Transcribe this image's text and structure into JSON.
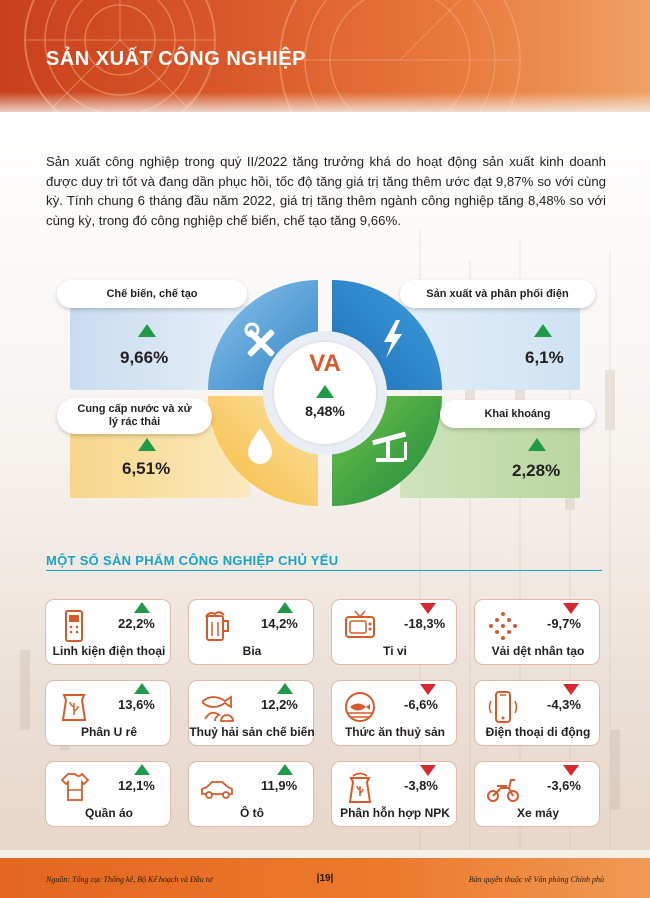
{
  "header": {
    "title": "SẢN XUẤT CÔNG NGHIỆP"
  },
  "intro": "Sản xuất công nghiệp trong quý II/2022 tăng trưởng khá do hoạt động sản xuất kinh doanh được duy trì tốt và đang dần phục hồi, tốc độ tăng giá trị tăng thêm ước đạt 9,87% so với cùng kỳ. Tính chung 6 tháng đầu năm 2022, giá trị tăng thêm ngành công nghiệp tăng 8,48% so với cùng kỳ, trong đó công nghiệp chế biến, chế tạo tăng 9,66%.",
  "va": {
    "center_label": "VA",
    "center_value": "8,48%",
    "sectors": [
      {
        "name": "Chế biến, chế tạo",
        "value": "9,66%",
        "trend": "up",
        "icon": "tools-icon"
      },
      {
        "name": "Sản xuất và phân phối điện",
        "value": "6,1%",
        "trend": "up",
        "icon": "lightning-icon"
      },
      {
        "name": "Cung cấp nước và xử lý rác thải",
        "value": "6,51%",
        "trend": "up",
        "icon": "water-drop-icon"
      },
      {
        "name": "Khai khoáng",
        "value": "2,28%",
        "trend": "up",
        "icon": "oil-pump-icon"
      }
    ],
    "colors": {
      "blue": "#2f86c8",
      "yellow": "#f6b93b",
      "green": "#3aa44a",
      "orange": "#d65a2a"
    }
  },
  "products": {
    "title": "MỘT SỐ SẢN PHẨM CÔNG NGHIỆP CHỦ YẾU",
    "items": [
      {
        "name": "Linh kiện điện thoại",
        "value": "22,2%",
        "trend": "up",
        "icon": "phone-component-icon"
      },
      {
        "name": "Bia",
        "value": "14,2%",
        "trend": "up",
        "icon": "beer-icon"
      },
      {
        "name": "Ti vi",
        "value": "-18,3%",
        "trend": "down",
        "icon": "tv-icon"
      },
      {
        "name": "Vải dệt nhân tạo",
        "value": "-9,7%",
        "trend": "down",
        "icon": "fabric-icon"
      },
      {
        "name": "Phân U rê",
        "value": "13,6%",
        "trend": "up",
        "icon": "fertilizer-bag-icon"
      },
      {
        "name": "Thuỷ hải sản chế biến",
        "value": "12,2%",
        "trend": "up",
        "icon": "seafood-icon"
      },
      {
        "name": "Thức ăn thuỷ sản",
        "value": "-6,6%",
        "trend": "down",
        "icon": "fish-feed-icon"
      },
      {
        "name": "Điện thoại di động",
        "value": "-4,3%",
        "trend": "down",
        "icon": "mobile-phone-icon"
      },
      {
        "name": "Quần áo",
        "value": "12,1%",
        "trend": "up",
        "icon": "clothes-icon"
      },
      {
        "name": "Ô tô",
        "value": "11,9%",
        "trend": "up",
        "icon": "car-icon"
      },
      {
        "name": "Phân hỗn hợp NPK",
        "value": "-3,8%",
        "trend": "down",
        "icon": "npk-bag-icon"
      },
      {
        "name": "Xe máy",
        "value": "-3,6%",
        "trend": "down",
        "icon": "motorbike-icon"
      }
    ],
    "colors": {
      "up": "#1f9a48",
      "down": "#d7282f",
      "icon": "#d65a2a"
    }
  },
  "footer": {
    "source": "Nguồn: Tổng cục Thống kê, Bộ Kế hoạch và Đầu tư",
    "page": "|19|",
    "copyright": "Bản quyền thuộc về Văn phòng Chính phủ"
  }
}
